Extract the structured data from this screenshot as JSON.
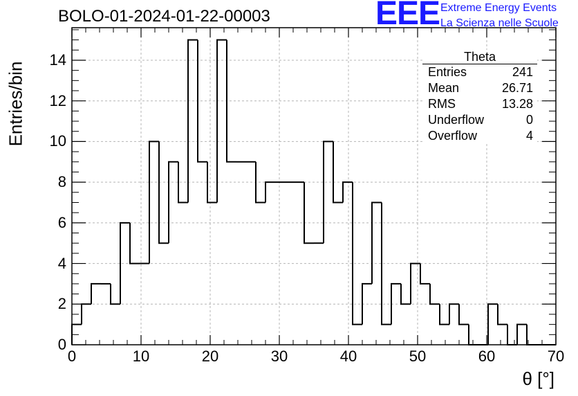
{
  "chart_data": {
    "type": "histogram",
    "title": "BOLO-01-2024-01-22-00003",
    "xlabel": "θ [°]",
    "ylabel": "Entries/bin",
    "xlim": [
      0,
      70
    ],
    "ylim": [
      0,
      15.6
    ],
    "bin_width": 1.4,
    "x_ticks": [
      "0",
      "10",
      "20",
      "30",
      "40",
      "50",
      "60",
      "70"
    ],
    "y_ticks": [
      "0",
      "2",
      "4",
      "6",
      "8",
      "10",
      "12",
      "14"
    ],
    "grid": true,
    "values": [
      1,
      2,
      3,
      3,
      2,
      6,
      4,
      4,
      10,
      5,
      9,
      7,
      15,
      9,
      7,
      15,
      9,
      9,
      9,
      7,
      8,
      8,
      8,
      8,
      5,
      5,
      10,
      7,
      8,
      1,
      3,
      7,
      1,
      3,
      2,
      4,
      3,
      2,
      1,
      2,
      1,
      0,
      0,
      2,
      1,
      0,
      1,
      0,
      0,
      0
    ],
    "stats": {
      "name": "Theta",
      "rows": [
        {
          "label": "Entries",
          "value": "241"
        },
        {
          "label": "Mean",
          "value": "26.71"
        },
        {
          "label": "RMS",
          "value": "13.28"
        },
        {
          "label": "Underflow",
          "value": "0"
        },
        {
          "label": "Overflow",
          "value": "4"
        }
      ]
    }
  },
  "logo": {
    "text": "EEE",
    "line1": "Extreme Energy Events",
    "line2": "La Scienza nelle Scuole",
    "color": "#1a1aff"
  },
  "colors": {
    "line": "#000000",
    "grid": "#b4b4b4"
  }
}
